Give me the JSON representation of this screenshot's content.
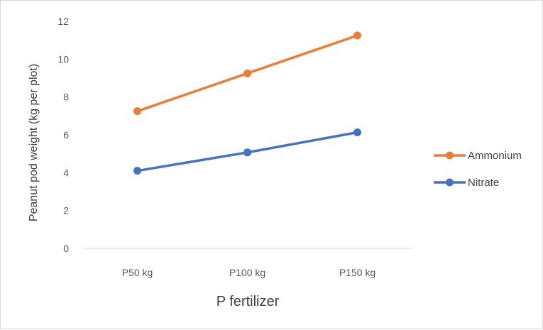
{
  "chart_data": {
    "type": "line",
    "title": "",
    "xlabel": "P fertilizer",
    "ylabel": "Peanut pod weight (kg per plot)",
    "categories": [
      "P50 kg",
      "P100 kg",
      "P150 kg"
    ],
    "ylim": [
      0,
      12
    ],
    "yticks": [
      0,
      2,
      4,
      6,
      8,
      10,
      12
    ],
    "grid": false,
    "legend_position": "right",
    "series": [
      {
        "name": "Ammonium",
        "values": [
          7.25,
          9.25,
          11.25
        ],
        "color": "#ED7D31"
      },
      {
        "name": "Nitrate",
        "values": [
          4.1,
          5.07,
          6.13
        ],
        "color": "#4472C4"
      }
    ]
  }
}
